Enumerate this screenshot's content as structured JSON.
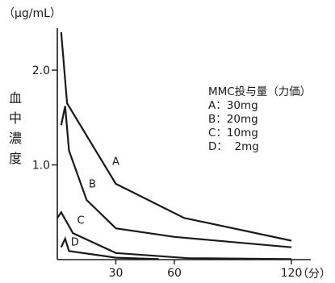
{
  "chart_data": {
    "type": "line",
    "xlabel": "",
    "x_unit": "（分）",
    "ylabel": "血中濃度",
    "y_unit": "（μg/mL）",
    "xlim": [
      0,
      120
    ],
    "ylim": [
      0,
      2.5
    ],
    "x_ticks": [
      30,
      60,
      120
    ],
    "y_ticks": [
      1.0,
      2.0
    ],
    "y_tick_labels": [
      "1.0",
      "2.0"
    ],
    "grid": false,
    "legend_title": "MMC投与量（力価）",
    "legend_items": [
      "A：30mg",
      "B：20mg",
      "C：10mg",
      "D：  2mg"
    ],
    "series": [
      {
        "name": "A",
        "x": [
          2,
          5,
          30,
          65,
          120
        ],
        "y": [
          2.4,
          1.65,
          0.8,
          0.44,
          0.2
        ]
      },
      {
        "name": "B",
        "x": [
          2,
          4,
          6,
          15,
          30,
          60,
          120
        ],
        "y": [
          1.42,
          1.62,
          1.15,
          0.63,
          0.33,
          0.24,
          0.13
        ]
      },
      {
        "name": "C",
        "x": [
          0,
          2,
          8,
          30,
          67,
          120
        ],
        "y": [
          0.44,
          0.5,
          0.28,
          0.07,
          0.015,
          0.005
        ]
      },
      {
        "name": "D",
        "x": [
          2,
          4,
          6,
          30,
          52
        ],
        "y": [
          0.13,
          0.22,
          0.09,
          0.02,
          0.005
        ]
      }
    ],
    "curve_labels": [
      "A",
      "B",
      "C",
      "D"
    ]
  }
}
